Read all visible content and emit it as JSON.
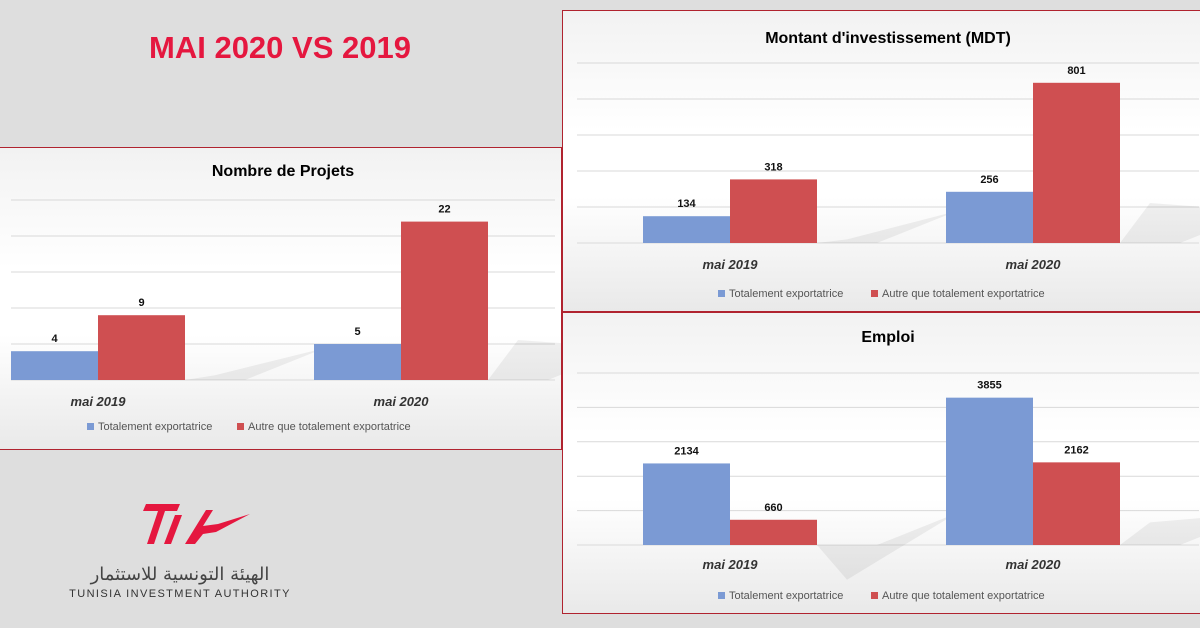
{
  "headline": "MAI 2020 VS 2019",
  "colors": {
    "series1": "#7b9ad4",
    "series2": "#cf4f51",
    "headline": "#e5173f",
    "frame": "#b0232f"
  },
  "logo": {
    "mark_text": "TIA",
    "arabic": "الهيئة التونسية للاستثمار",
    "name": "TUNISIA INVESTMENT AUTHORITY"
  },
  "chart_data": [
    {
      "type": "bar",
      "title": "Nombre de Projets",
      "categories": [
        "mai 2019",
        "mai 2020"
      ],
      "series": [
        {
          "name": "Totalement exportatrice",
          "values": [
            4,
            5
          ]
        },
        {
          "name": "Autre que totalement exportatrice",
          "values": [
            9,
            22
          ]
        }
      ],
      "ylim": [
        0,
        25
      ],
      "grid": true,
      "legend": "bottom"
    },
    {
      "type": "bar",
      "title": "Montant d'investissement (MDT)",
      "categories": [
        "mai 2019",
        "mai 2020"
      ],
      "series": [
        {
          "name": "Totalement exportatrice",
          "values": [
            134,
            256
          ]
        },
        {
          "name": "Autre que totalement exportatrice",
          "values": [
            318,
            801
          ]
        }
      ],
      "ylim": [
        0,
        900
      ],
      "grid": true,
      "legend": "bottom"
    },
    {
      "type": "bar",
      "title": "Emploi",
      "categories": [
        "mai 2019",
        "mai 2020"
      ],
      "series": [
        {
          "name": "Totalement exportatrice",
          "values": [
            2134,
            3855
          ]
        },
        {
          "name": "Autre que totalement exportatrice",
          "values": [
            660,
            2162
          ]
        }
      ],
      "ylim": [
        0,
        4500
      ],
      "grid": true,
      "legend": "bottom"
    }
  ]
}
